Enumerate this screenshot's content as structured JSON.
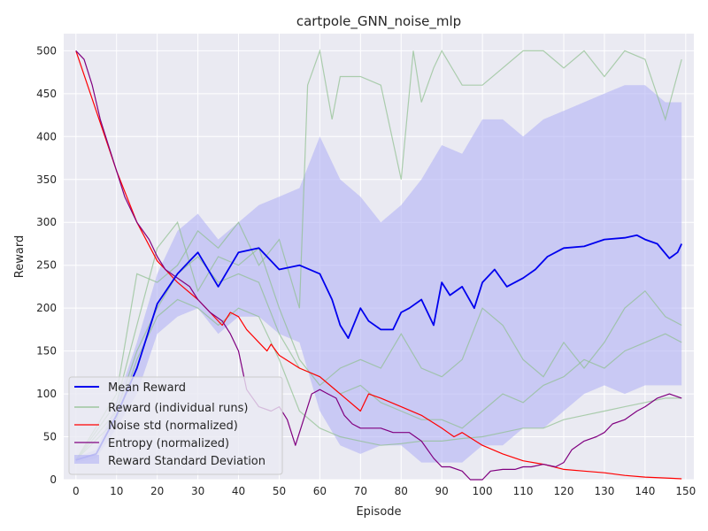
{
  "chart_data": {
    "type": "line",
    "title": "cartpole_GNN_noise_mlp",
    "xlabel": "Episode",
    "ylabel": "Reward",
    "xlim": [
      -3,
      152
    ],
    "ylim": [
      0,
      520
    ],
    "xticks": [
      0,
      10,
      20,
      30,
      40,
      50,
      60,
      70,
      80,
      90,
      100,
      110,
      120,
      130,
      140,
      150
    ],
    "yticks": [
      0,
      50,
      100,
      150,
      200,
      250,
      300,
      350,
      400,
      450,
      500
    ],
    "grid": true,
    "legend_position": "bottom-left",
    "colors": {
      "background": "#eaeaf2",
      "grid": "#ffffff",
      "mean": "#0000ee",
      "individual": "#8fbf8f",
      "noise": "#ff0000",
      "entropy": "#800080",
      "band": "#b3b3f5"
    },
    "series": [
      {
        "name": "Mean Reward",
        "key": "mean",
        "x": [
          0,
          5,
          10,
          15,
          20,
          25,
          28,
          30,
          35,
          40,
          45,
          50,
          55,
          60,
          63,
          65,
          67,
          70,
          72,
          75,
          78,
          80,
          82,
          85,
          88,
          90,
          92,
          95,
          98,
          100,
          103,
          106,
          110,
          113,
          116,
          120,
          125,
          130,
          135,
          138,
          140,
          143,
          146,
          148,
          149
        ],
        "y": [
          23,
          30,
          75,
          130,
          205,
          240,
          255,
          265,
          225,
          265,
          270,
          245,
          250,
          240,
          210,
          180,
          165,
          200,
          185,
          175,
          175,
          195,
          200,
          210,
          180,
          230,
          215,
          225,
          200,
          230,
          245,
          225,
          235,
          245,
          260,
          270,
          272,
          280,
          282,
          285,
          280,
          275,
          258,
          265,
          275
        ]
      },
      {
        "name": "Entropy (normalized)",
        "key": "entropy",
        "x": [
          0,
          2,
          4,
          6,
          8,
          10,
          12,
          15,
          18,
          20,
          22,
          25,
          28,
          30,
          33,
          36,
          38,
          40,
          42,
          45,
          48,
          50,
          52,
          54,
          56,
          58,
          60,
          62,
          64,
          66,
          68,
          70,
          72,
          75,
          78,
          80,
          82,
          85,
          88,
          90,
          92,
          95,
          97,
          100,
          102,
          105,
          108,
          110,
          112,
          115,
          118,
          120,
          122,
          125,
          128,
          130,
          132,
          135,
          138,
          140,
          143,
          146,
          149
        ],
        "y": [
          500,
          490,
          460,
          420,
          390,
          360,
          330,
          300,
          280,
          260,
          245,
          235,
          225,
          210,
          195,
          185,
          170,
          150,
          105,
          85,
          80,
          85,
          70,
          40,
          70,
          100,
          105,
          100,
          95,
          75,
          65,
          60,
          60,
          60,
          55,
          55,
          55,
          45,
          25,
          15,
          15,
          10,
          0,
          0,
          10,
          12,
          12,
          15,
          15,
          18,
          15,
          20,
          35,
          45,
          50,
          55,
          65,
          70,
          80,
          85,
          95,
          100,
          95
        ]
      },
      {
        "name": "Noise std (normalized)",
        "key": "noise",
        "x": [
          0,
          5,
          10,
          15,
          20,
          25,
          30,
          33,
          36,
          38,
          40,
          42,
          45,
          47,
          48,
          50,
          55,
          60,
          65,
          70,
          72,
          75,
          80,
          85,
          90,
          93,
          95,
          100,
          105,
          110,
          115,
          120,
          125,
          130,
          135,
          140,
          145,
          149
        ],
        "y": [
          500,
          430,
          360,
          300,
          255,
          230,
          210,
          195,
          180,
          195,
          190,
          175,
          160,
          150,
          158,
          145,
          130,
          120,
          100,
          80,
          100,
          95,
          85,
          75,
          60,
          50,
          55,
          40,
          30,
          22,
          18,
          12,
          10,
          8,
          5,
          3,
          2,
          1
        ]
      }
    ],
    "individual_runs": [
      {
        "name": "Reward (individual runs)",
        "x": [
          0,
          10,
          15,
          20,
          25,
          30,
          35,
          40,
          45,
          50,
          55,
          57,
          60,
          63,
          65,
          70,
          75,
          80,
          83,
          85,
          88,
          90,
          95,
          100,
          105,
          110,
          115,
          120,
          125,
          130,
          135,
          140,
          145,
          149
        ],
        "y": [
          23,
          100,
          240,
          230,
          250,
          290,
          270,
          300,
          250,
          280,
          200,
          460,
          500,
          420,
          470,
          470,
          460,
          350,
          500,
          440,
          480,
          500,
          460,
          460,
          480,
          500,
          500,
          480,
          500,
          470,
          500,
          490,
          420,
          490
        ]
      },
      {
        "name": "",
        "x": [
          0,
          10,
          15,
          20,
          25,
          30,
          35,
          40,
          45,
          50,
          55,
          60,
          65,
          70,
          75,
          80,
          85,
          90,
          95,
          100,
          105,
          110,
          115,
          120,
          125,
          130,
          135,
          140,
          145,
          149
        ],
        "y": [
          23,
          90,
          180,
          270,
          300,
          220,
          260,
          250,
          270,
          200,
          140,
          110,
          130,
          140,
          130,
          170,
          130,
          120,
          140,
          200,
          180,
          140,
          120,
          160,
          130,
          160,
          200,
          220,
          190,
          180
        ]
      },
      {
        "name": "",
        "x": [
          0,
          10,
          15,
          20,
          25,
          30,
          35,
          40,
          45,
          50,
          55,
          60,
          65,
          70,
          75,
          80,
          85,
          90,
          95,
          100,
          105,
          110,
          115,
          120,
          125,
          130,
          135,
          140,
          145,
          149
        ],
        "y": [
          23,
          80,
          150,
          200,
          240,
          260,
          230,
          240,
          230,
          170,
          130,
          120,
          100,
          110,
          90,
          80,
          70,
          70,
          60,
          80,
          100,
          90,
          110,
          120,
          140,
          130,
          150,
          160,
          170,
          160
        ]
      },
      {
        "name": "",
        "x": [
          0,
          10,
          15,
          20,
          25,
          30,
          35,
          40,
          45,
          50,
          55,
          60,
          65,
          70,
          75,
          80,
          85,
          90,
          95,
          100,
          105,
          110,
          115,
          120,
          125,
          130,
          135,
          140,
          145,
          149
        ],
        "y": [
          23,
          70,
          140,
          190,
          210,
          200,
          180,
          200,
          190,
          140,
          80,
          60,
          50,
          45,
          40,
          42,
          45,
          45,
          48,
          50,
          55,
          60,
          60,
          70,
          75,
          80,
          85,
          90,
          95,
          95
        ]
      }
    ],
    "std_band": {
      "name": "Reward Standard Deviation",
      "x": [
        0,
        5,
        10,
        15,
        20,
        25,
        30,
        35,
        40,
        45,
        50,
        55,
        60,
        65,
        70,
        75,
        80,
        85,
        90,
        95,
        100,
        105,
        110,
        115,
        120,
        125,
        130,
        135,
        140,
        145,
        149
      ],
      "upper": [
        26,
        35,
        90,
        160,
        240,
        290,
        310,
        280,
        300,
        320,
        330,
        340,
        400,
        350,
        330,
        300,
        320,
        350,
        390,
        380,
        420,
        420,
        400,
        420,
        430,
        440,
        450,
        460,
        460,
        440,
        440
      ],
      "lower": [
        20,
        25,
        60,
        100,
        170,
        190,
        200,
        170,
        190,
        190,
        170,
        160,
        80,
        40,
        30,
        40,
        40,
        20,
        20,
        20,
        40,
        40,
        60,
        60,
        80,
        100,
        110,
        100,
        110,
        110,
        110
      ]
    }
  }
}
